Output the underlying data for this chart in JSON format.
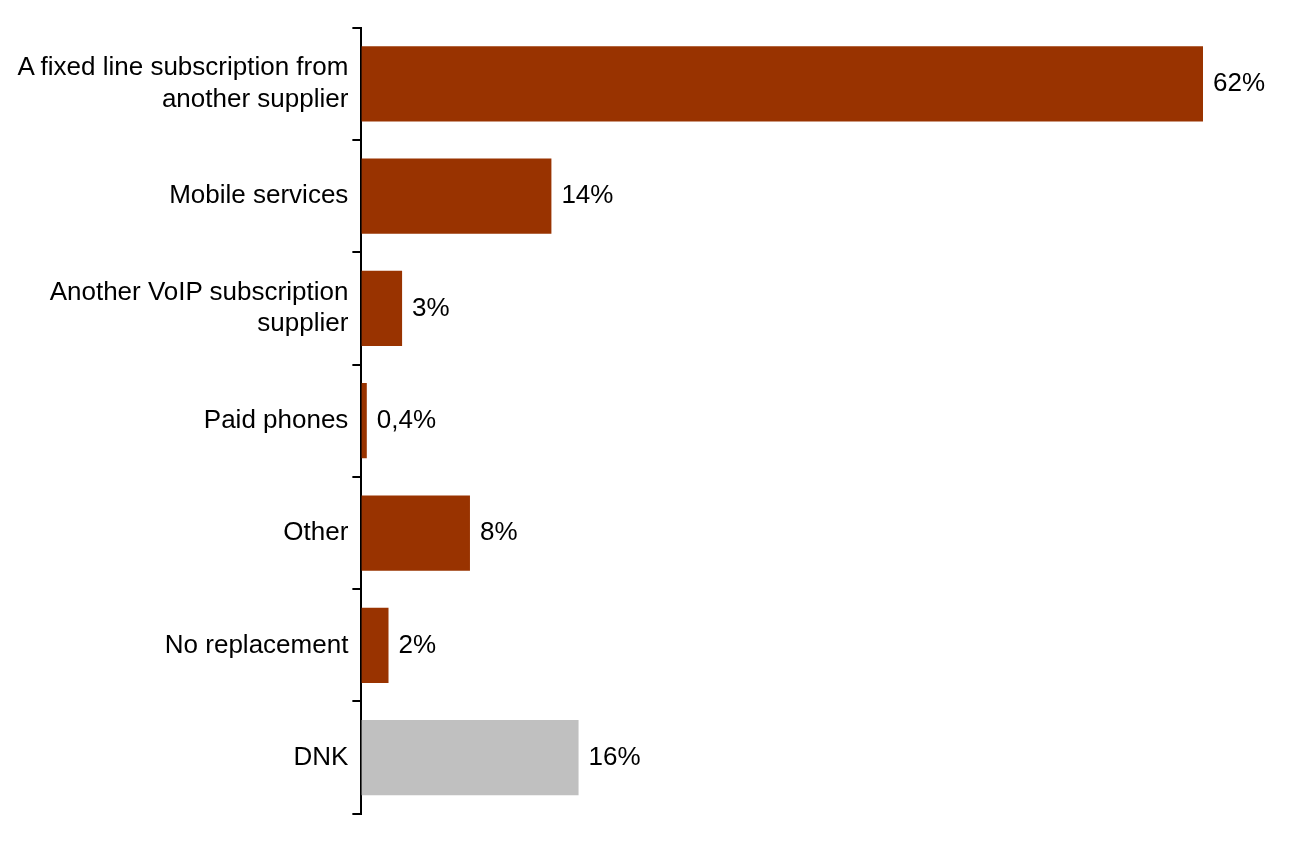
{
  "chart_data": {
    "type": "bar",
    "orientation": "horizontal",
    "categories": [
      "A fixed line subscription from another supplier",
      "Mobile services",
      "Another VoIP subscription supplier",
      "Paid phones",
      "Other",
      "No replacement",
      "DNK"
    ],
    "values": [
      62,
      14,
      3,
      0.4,
      8,
      2,
      16
    ],
    "colors": [
      "#993300",
      "#993300",
      "#993300",
      "#993300",
      "#993300",
      "#993300",
      "#c0c0c0"
    ],
    "value_labels": [
      "62%",
      "14%",
      "3%",
      "0,4%",
      "8%",
      "2%",
      "16%"
    ],
    "xlim": [
      0,
      62
    ],
    "legend": false,
    "tick_labels": "y"
  }
}
